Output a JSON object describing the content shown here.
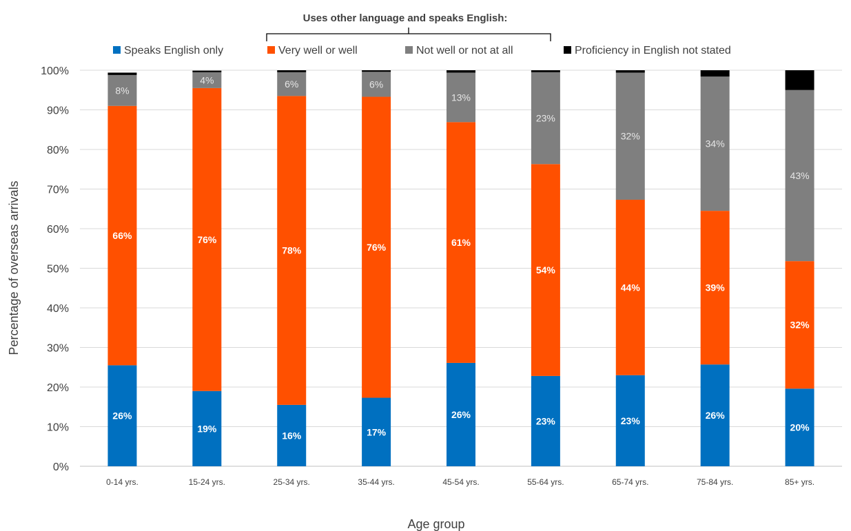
{
  "chart_data": {
    "type": "bar",
    "stacked": true,
    "bracket_label": "Uses other language and speaks English:",
    "xlabel": "Age group",
    "ylabel": "Percentage of overseas arrivals",
    "ylim": [
      0,
      100
    ],
    "yticks": [
      "0%",
      "10%",
      "20%",
      "30%",
      "40%",
      "50%",
      "60%",
      "70%",
      "80%",
      "90%",
      "100%"
    ],
    "grid": true,
    "legend_position": "top",
    "categories": [
      "0-14 yrs.",
      "15-24 yrs.",
      "25-34 yrs.",
      "35-44 yrs.",
      "45-54 yrs.",
      "55-64 yrs.",
      "65-74 yrs.",
      "75-84 yrs.",
      "85+ yrs."
    ],
    "series": [
      {
        "name": "Speaks English only",
        "color": "#0070C0",
        "values": [
          25.5,
          19,
          15.5,
          17.3,
          26.1,
          22.8,
          23.0,
          25.7,
          19.6
        ],
        "labels": [
          "26%",
          "19%",
          "16%",
          "17%",
          "26%",
          "23%",
          "23%",
          "26%",
          "20%"
        ],
        "label_color": "#ffffff",
        "label_bold": true
      },
      {
        "name": "Very well or well",
        "color": "#FF5000",
        "values": [
          65.5,
          76.5,
          78.0,
          76.0,
          60.8,
          53.5,
          44.3,
          38.8,
          32.2
        ],
        "labels": [
          "66%",
          "76%",
          "78%",
          "76%",
          "61%",
          "54%",
          "44%",
          "39%",
          "32%"
        ],
        "label_color": "#ffffff",
        "label_bold": true
      },
      {
        "name": "Not well or not at all",
        "color": "#7F7F7F",
        "values": [
          7.8,
          4.0,
          6.0,
          6.3,
          12.5,
          23.2,
          32.1,
          33.9,
          43.2
        ],
        "labels": [
          "8%",
          "4%",
          "6%",
          "6%",
          "13%",
          "23%",
          "32%",
          "34%",
          "43%"
        ],
        "label_color": "#E6E6E6",
        "label_bold": false
      },
      {
        "name": "Proficiency in English not stated",
        "color": "#000000",
        "values": [
          0.6,
          0.4,
          0.5,
          0.4,
          0.6,
          0.5,
          0.6,
          1.6,
          5.0
        ],
        "labels": [
          "",
          "",
          "",
          "",
          "",
          "",
          "",
          "",
          ""
        ],
        "label_color": "#ffffff",
        "label_bold": false
      }
    ]
  }
}
